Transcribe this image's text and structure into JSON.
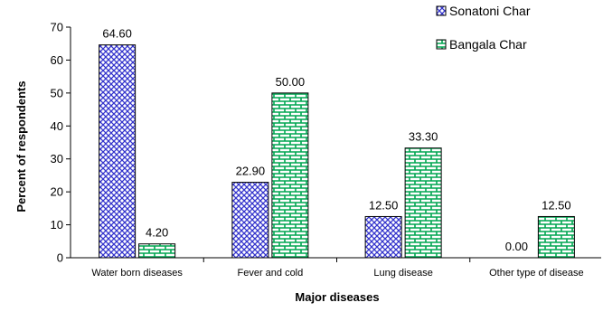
{
  "chart_data": {
    "type": "bar",
    "title": "",
    "xlabel": "Major diseases",
    "ylabel": "Percent of respondents",
    "ylim": [
      0,
      70
    ],
    "yticks": [
      0,
      10,
      20,
      30,
      40,
      50,
      60,
      70
    ],
    "grid": false,
    "legend": "top-right",
    "categories": [
      "Water born diseases",
      "Fever and cold",
      "Lung disease",
      "Other type of disease"
    ],
    "series": [
      {
        "name": "Sonatoni Char",
        "pattern": "crosshatch",
        "color": "#3333cc",
        "values": [
          64.6,
          22.9,
          12.5,
          0.0
        ],
        "labels": [
          "64.60",
          "22.90",
          "12.50",
          "0.00"
        ]
      },
      {
        "name": "Bangala Char",
        "pattern": "brick",
        "color": "#00a651",
        "values": [
          4.2,
          50.0,
          33.3,
          12.5
        ],
        "labels": [
          "4.20",
          "50.00",
          "33.30",
          "12.50"
        ]
      }
    ]
  }
}
